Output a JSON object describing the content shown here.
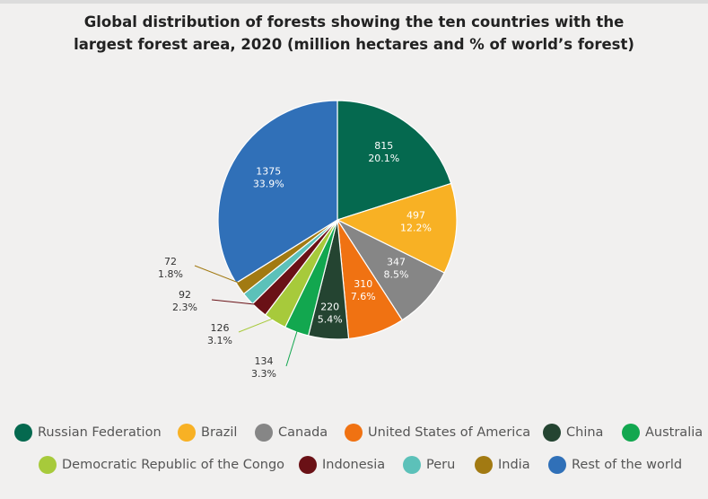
{
  "title": {
    "line1": "Global distribution of forests showing the ten countries with the",
    "line2": "largest forest area, 2020 (million hectares and % of world’s forest)"
  },
  "chart_data": {
    "type": "pie",
    "title": "Global distribution of forests showing the ten countries with the largest forest area, 2020 (million hectares and % of world’s forest)",
    "slices": [
      {
        "name": "Russian Federation",
        "value": 815,
        "percent": "20.1%",
        "color": "#05694f",
        "label_inside": true,
        "label_color": "#ffffff"
      },
      {
        "name": "Brazil",
        "value": 497,
        "percent": "12.2%",
        "color": "#f8b124",
        "label_inside": true,
        "label_color": "#ffffff"
      },
      {
        "name": "Canada",
        "value": 347,
        "percent": "8.5%",
        "color": "#868686",
        "label_inside": true,
        "label_color": "#ffffff"
      },
      {
        "name": "United States of America",
        "value": 310,
        "percent": "7.6%",
        "color": "#f07212",
        "label_inside": true,
        "label_color": "#ffffff"
      },
      {
        "name": "China",
        "value": 220,
        "percent": "5.4%",
        "color": "#244431",
        "label_inside": true,
        "label_color": "#ffffff"
      },
      {
        "name": "Australia",
        "value": 134,
        "percent": "3.3%",
        "color": "#12a74f",
        "label_inside": false,
        "label_color": "#333333"
      },
      {
        "name": "Democratic Republic of the Congo",
        "value": 126,
        "percent": "3.1%",
        "color": "#a7ca3b",
        "label_inside": false,
        "label_color": "#333333"
      },
      {
        "name": "Indonesia",
        "value": 92,
        "percent": "2.3%",
        "color": "#6a1116",
        "label_inside": false,
        "label_color": "#333333"
      },
      {
        "name": "Peru",
        "value": 72,
        "percent": "1.8%",
        "color": "#5cc1b9",
        "label_inside": false,
        "label_color": "#333333"
      },
      {
        "name": "India",
        "value": 72,
        "percent": "1.8%",
        "color": "#a27a12",
        "label_inside": false,
        "label_color": "#333333"
      },
      {
        "name": "Rest of the world",
        "value": 1375,
        "percent": "33.9%",
        "color": "#3070b8",
        "label_inside": true,
        "label_color": "#ffffff"
      }
    ],
    "unit": "million hectares"
  },
  "legend": [
    {
      "label": "Russian Federation",
      "color": "#05694f"
    },
    {
      "label": "Brazil",
      "color": "#f8b124"
    },
    {
      "label": "Canada",
      "color": "#868686"
    },
    {
      "label": "United States of America",
      "color": "#f07212"
    },
    {
      "label": "China",
      "color": "#244431"
    },
    {
      "label": "Australia",
      "color": "#12a74f"
    },
    {
      "label": "Democratic Republic of the Congo",
      "color": "#a7ca3b"
    },
    {
      "label": "Indonesia",
      "color": "#6a1116"
    },
    {
      "label": "Peru",
      "color": "#5cc1b9"
    },
    {
      "label": "India",
      "color": "#a27a12"
    },
    {
      "label": "Rest of the world",
      "color": "#3070b8"
    }
  ]
}
